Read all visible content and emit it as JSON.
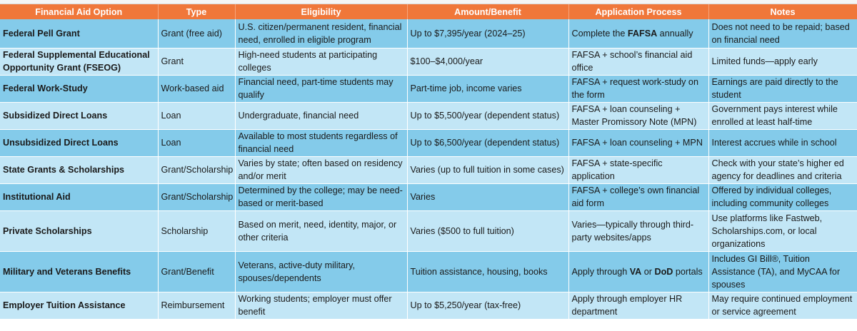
{
  "headers": [
    "Financial Aid Option",
    "Type",
    "Eligibility",
    "Amount/Benefit",
    "Application Process",
    "Notes"
  ],
  "rows": [
    {
      "option": "Federal Pell Grant",
      "type": "Grant (free aid)",
      "eligibility": "U.S. citizen/permanent resident, financial need, enrolled in eligible program",
      "amount": "Up to $7,395/year (2024–25)",
      "process_pre": "Complete the ",
      "process_bold1": "FAFSA",
      "process_post": " annually",
      "notes": "Does not need to be repaid; based on financial need"
    },
    {
      "option": "Federal Supplemental Educational Opportunity Grant (FSEOG)",
      "type": "Grant",
      "eligibility": "High-need students at participating colleges",
      "amount": "$100–$4,000/year",
      "process": "FAFSA + school’s financial aid office",
      "notes": "Limited funds—apply early"
    },
    {
      "option": "Federal Work-Study",
      "type": "Work-based aid",
      "eligibility": "Financial need, part-time students may qualify",
      "amount": "Part-time job, income varies",
      "process": "FAFSA + request work-study on the form",
      "notes": "Earnings are paid directly to the student"
    },
    {
      "option": "Subsidized Direct Loans",
      "type": "Loan",
      "eligibility": "Undergraduate, financial need",
      "amount": "Up to $5,500/year (dependent status)",
      "process": "FAFSA + loan counseling + Master Promissory Note (MPN)",
      "notes": "Government pays interest while enrolled at least half-time"
    },
    {
      "option": "Unsubsidized Direct Loans",
      "type": "Loan",
      "eligibility": "Available to most students regardless of financial need",
      "amount": "Up to $6,500/year (dependent status)",
      "process": "FAFSA + loan counseling + MPN",
      "notes": "Interest accrues while in school"
    },
    {
      "option": "State Grants & Scholarships",
      "type": "Grant/Scholarship",
      "eligibility": "Varies by state; often based on residency and/or merit",
      "amount": "Varies (up to full tuition in some cases)",
      "process": "FAFSA + state-specific application",
      "notes": "Check with your state’s higher ed agency for deadlines and criteria"
    },
    {
      "option": "Institutional Aid",
      "type": "Grant/Scholarship",
      "eligibility": "Determined by the college; may be need-based or merit-based",
      "amount": "Varies",
      "process": "FAFSA + college’s own financial aid form",
      "notes": "Offered by individual colleges, including community colleges"
    },
    {
      "option": "Private Scholarships",
      "type": "Scholarship",
      "eligibility": "Based on merit, need, identity, major, or other criteria",
      "amount": "Varies ($500 to full tuition)",
      "process": "Varies—typically through third-party websites/apps",
      "notes": "Use platforms like Fastweb, Scholarships.com, or local organizations"
    },
    {
      "option": "Military and Veterans Benefits",
      "type": "Grant/Benefit",
      "eligibility": "Veterans, active-duty military, spouses/dependents",
      "amount": "Tuition assistance, housing, books",
      "process_pre": "Apply through ",
      "process_bold1": "VA",
      "process_mid": " or ",
      "process_bold2": "DoD",
      "process_post": " portals",
      "notes": "Includes GI Bill®, Tuition Assistance (TA), and MyCAA for spouses"
    },
    {
      "option": "Employer Tuition Assistance",
      "type": "Reimbursement",
      "eligibility": "Working students; employer must offer benefit",
      "amount": "Up to $5,250/year (tax-free)",
      "process": "Apply through employer HR department",
      "notes": "May require continued employment or service agreement"
    }
  ]
}
